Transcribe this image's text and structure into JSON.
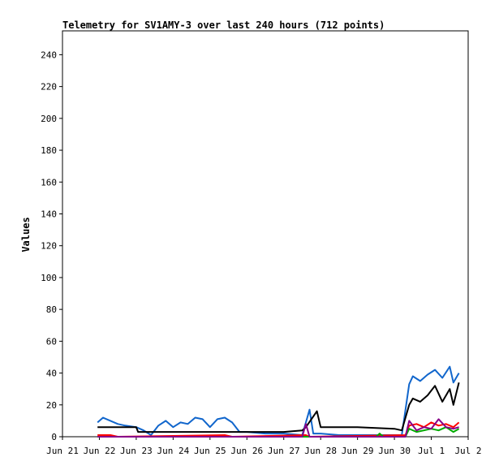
{
  "chart_data": {
    "type": "line",
    "title": "Telemetry for SV1AMY-3 over last 240 hours (712 points)",
    "xlabel": "",
    "ylabel": "Values",
    "xlim": [
      "Jun 21",
      "Jul 2"
    ],
    "ylim": [
      0,
      255
    ],
    "grid": false,
    "x_ticks": [
      "Jun 21",
      "Jun 22",
      "Jun 23",
      "Jun 24",
      "Jun 25",
      "Jun 26",
      "Jun 27",
      "Jun 28",
      "Jun 29",
      "Jun 30",
      "Jul 1",
      "Jul 2"
    ],
    "y_ticks": [
      0,
      20,
      40,
      60,
      80,
      100,
      120,
      140,
      160,
      180,
      200,
      220,
      240
    ],
    "colors": {
      "blue": "#1166cc",
      "black": "#000000",
      "red": "#ff0000",
      "green": "#00aa00",
      "purple": "#880088"
    },
    "series": [
      {
        "color": "blue",
        "x": [
          0.95,
          1.1,
          1.3,
          1.5,
          1.7,
          2.0,
          2.2,
          2.4,
          2.6,
          2.8,
          3.0,
          3.2,
          3.4,
          3.6,
          3.8,
          4.0,
          4.2,
          4.4,
          4.6,
          4.8,
          5.0,
          5.5,
          6.0,
          6.5,
          6.7,
          6.8,
          7.0,
          7.5,
          8.0,
          8.5,
          9.0,
          9.2,
          9.4,
          9.5,
          9.7,
          9.9,
          10.1,
          10.3,
          10.5,
          10.6,
          10.75
        ],
        "y": [
          9,
          12,
          10,
          8,
          7,
          6,
          4,
          1,
          7,
          10,
          6,
          9,
          8,
          12,
          11,
          6,
          11,
          12,
          9,
          3,
          3,
          2,
          2,
          1,
          17,
          2,
          2,
          1,
          1,
          1,
          1,
          1,
          33,
          38,
          35,
          39,
          42,
          37,
          44,
          34,
          40
        ]
      },
      {
        "color": "black",
        "x": [
          0.95,
          1.5,
          2.0,
          2.05,
          3.0,
          4.0,
          5.0,
          6.0,
          6.5,
          6.6,
          6.9,
          7.0,
          7.3,
          8.0,
          9.0,
          9.2,
          9.4,
          9.5,
          9.7,
          9.9,
          10.1,
          10.3,
          10.5,
          10.6,
          10.75
        ],
        "y": [
          6,
          6,
          6,
          3,
          3,
          3,
          3,
          3,
          4,
          6,
          16,
          6,
          6,
          6,
          5,
          4,
          20,
          24,
          22,
          26,
          32,
          22,
          30,
          20,
          34
        ]
      },
      {
        "color": "red",
        "x": [
          0.95,
          1.3,
          1.5,
          4.4,
          4.6,
          6.6,
          6.7,
          9.3,
          9.4,
          9.6,
          9.8,
          10.0,
          10.2,
          10.4,
          10.6,
          10.75
        ],
        "y": [
          1,
          1,
          0,
          1,
          0,
          1,
          0,
          1,
          7,
          8,
          6,
          9,
          7,
          8,
          6,
          9
        ]
      },
      {
        "color": "green",
        "x": [
          0.95,
          8.5,
          8.6,
          8.7,
          9.3,
          9.4,
          9.6,
          9.8,
          10.0,
          10.2,
          10.4,
          10.6,
          10.75
        ],
        "y": [
          0,
          0,
          2,
          0,
          0,
          5,
          3,
          4,
          5,
          4,
          6,
          3,
          5
        ]
      },
      {
        "color": "purple",
        "x": [
          0.95,
          6.5,
          6.6,
          6.7,
          9.3,
          9.4,
          9.6,
          9.8,
          10.0,
          10.2,
          10.4,
          10.6,
          10.75
        ],
        "y": [
          0,
          0,
          8,
          0,
          0,
          10,
          4,
          6,
          5,
          11,
          6,
          5,
          6
        ]
      }
    ]
  }
}
